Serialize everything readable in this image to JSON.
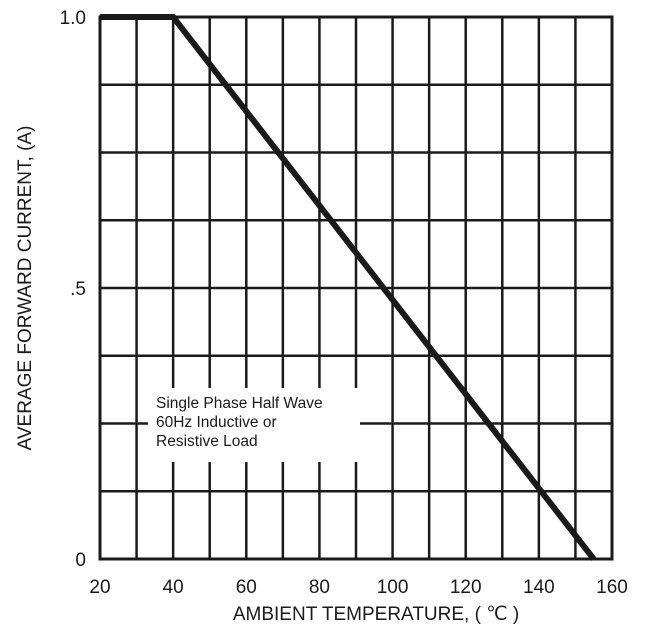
{
  "chart_data": {
    "type": "line",
    "title": "",
    "xlabel": "AMBIENT TEMPERATURE, ( ℃ )",
    "ylabel": "AVERAGE FORWARD CURRENT, (A)",
    "xlim": [
      20,
      160
    ],
    "ylim": [
      0,
      1.0
    ],
    "x_ticks": [
      20,
      40,
      60,
      80,
      100,
      120,
      140,
      160
    ],
    "x_tick_labels": [
      "20",
      "40",
      "60",
      "80",
      "100",
      "120",
      "140",
      "160"
    ],
    "y_ticks": [
      0,
      0.5,
      1.0
    ],
    "y_tick_labels": [
      "0",
      ".5",
      "1.0"
    ],
    "x_grid_step": 10,
    "y_grid_step": 0.125,
    "grid": true,
    "series": [
      {
        "x": [
          20,
          40,
          155
        ],
        "y": [
          1.0,
          1.0,
          0.0
        ]
      }
    ],
    "annotation": [
      "Single Phase Half Wave",
      "60Hz Inductive or",
      "Resistive Load"
    ]
  }
}
